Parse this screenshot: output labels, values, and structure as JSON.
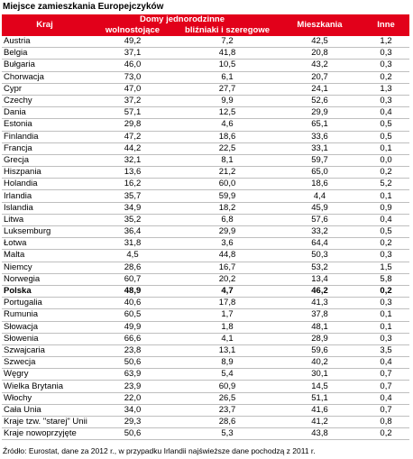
{
  "title": "Miejsce zamieszkania Europejczyków",
  "table": {
    "header": {
      "country": "Kraj",
      "group": "Domy jednorodzinne",
      "detached": "wolnostojące",
      "semi": "bliźniaki i szeregowe",
      "flats": "Mieszkania",
      "other": "Inne"
    },
    "rows": [
      [
        "Austria",
        "49,2",
        "7,2",
        "42,5",
        "1,2"
      ],
      [
        "Belgia",
        "37,1",
        "41,8",
        "20,8",
        "0,3"
      ],
      [
        "Bułgaria",
        "46,0",
        "10,5",
        "43,2",
        "0,3"
      ],
      [
        "Chorwacja",
        "73,0",
        "6,1",
        "20,7",
        "0,2"
      ],
      [
        "Cypr",
        "47,0",
        "27,7",
        "24,1",
        "1,3"
      ],
      [
        "Czechy",
        "37,2",
        "9,9",
        "52,6",
        "0,3"
      ],
      [
        "Dania",
        "57,1",
        "12,5",
        "29,9",
        "0,4"
      ],
      [
        "Estonia",
        "29,8",
        "4,6",
        "65,1",
        "0,5"
      ],
      [
        "Finlandia",
        "47,2",
        "18,6",
        "33,6",
        "0,5"
      ],
      [
        "Francja",
        "44,2",
        "22,5",
        "33,1",
        "0,1"
      ],
      [
        "Grecja",
        "32,1",
        "8,1",
        "59,7",
        "0,0"
      ],
      [
        "Hiszpania",
        "13,6",
        "21,2",
        "65,0",
        "0,2"
      ],
      [
        "Holandia",
        "16,2",
        "60,0",
        "18,6",
        "5,2"
      ],
      [
        "Irlandia",
        "35,7",
        "59,9",
        "4,4",
        "0,1"
      ],
      [
        "Islandia",
        "34,9",
        "18,2",
        "45,9",
        "0,9"
      ],
      [
        "Litwa",
        "35,2",
        "6,8",
        "57,6",
        "0,4"
      ],
      [
        "Luksemburg",
        "36,4",
        "29,9",
        "33,2",
        "0,5"
      ],
      [
        "Łotwa",
        "31,8",
        "3,6",
        "64,4",
        "0,2"
      ],
      [
        "Malta",
        "4,5",
        "44,8",
        "50,3",
        "0,3"
      ],
      [
        "Niemcy",
        "28,6",
        "16,7",
        "53,2",
        "1,5"
      ],
      [
        "Norwegia",
        "60,7",
        "20,2",
        "13,4",
        "5,8"
      ],
      [
        "Polska",
        "48,9",
        "4,7",
        "46,2",
        "0,2"
      ],
      [
        "Portugalia",
        "40,6",
        "17,8",
        "41,3",
        "0,3"
      ],
      [
        "Rumunia",
        "60,5",
        "1,7",
        "37,8",
        "0,1"
      ],
      [
        "Słowacja",
        "49,9",
        "1,8",
        "48,1",
        "0,1"
      ],
      [
        "Słowenia",
        "66,6",
        "4,1",
        "28,9",
        "0,3"
      ],
      [
        "Szwajcaria",
        "23,8",
        "13,1",
        "59,6",
        "3,5"
      ],
      [
        "Szwecja",
        "50,6",
        "8,9",
        "40,2",
        "0,4"
      ],
      [
        "Węgry",
        "63,9",
        "5,4",
        "30,1",
        "0,7"
      ],
      [
        "Wielka Brytania",
        "23,9",
        "60,9",
        "14,5",
        "0,7"
      ],
      [
        "Włochy",
        "22,0",
        "26,5",
        "51,1",
        "0,4"
      ],
      [
        "Cała Unia",
        "34,0",
        "23,7",
        "41,6",
        "0,7"
      ],
      [
        "Kraje tzw. \"starej\" Unii",
        "29,3",
        "28,6",
        "41,2",
        "0,8"
      ],
      [
        "Kraje nowoprzyjęte",
        "50,6",
        "5,3",
        "43,8",
        "0,2"
      ]
    ],
    "bold_rows": [
      21
    ]
  },
  "footer": "Źródło: Eurostat, dane za 2012 r., w przypadku Irlandii najświeższe dane pochodzą z 2011 r."
}
